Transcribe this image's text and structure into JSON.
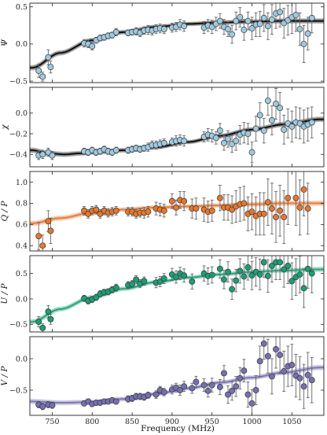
{
  "chart_data": [
    {
      "type": "scatter",
      "ylabel": "Ψ",
      "ylim": [
        -0.52,
        0.55
      ],
      "yticks": [
        -0.5,
        0.0,
        0.5
      ],
      "yticklabels": [
        "−0.5",
        "0.0",
        "0.5"
      ],
      "marker_color": "#9ecae1",
      "band_color": "#000000",
      "model": {
        "x": [
          725,
          760,
          800,
          840,
          880,
          920,
          960,
          1000,
          1040,
          1085
        ],
        "y": [
          -0.32,
          -0.12,
          0.05,
          0.16,
          0.23,
          0.27,
          0.29,
          0.3,
          0.31,
          0.31
        ]
      },
      "points": {
        "x": [
          733,
          738,
          745,
          748,
          790,
          795,
          800,
          805,
          810,
          815,
          820,
          825,
          830,
          845,
          850,
          855,
          860,
          865,
          870,
          875,
          880,
          885,
          890,
          900,
          905,
          910,
          915,
          940,
          945,
          950,
          955,
          960,
          965,
          970,
          975,
          980,
          985,
          990,
          995,
          1000,
          1005,
          1010,
          1015,
          1020,
          1025,
          1030,
          1035,
          1040,
          1045,
          1050,
          1055,
          1060,
          1065,
          1070,
          1075
        ],
        "y": [
          -0.36,
          -0.44,
          -0.18,
          -0.31,
          0.01,
          0.0,
          -0.03,
          0.05,
          0.08,
          0.09,
          0.11,
          0.12,
          0.16,
          0.15,
          0.16,
          0.17,
          0.15,
          0.18,
          0.19,
          0.18,
          0.2,
          0.21,
          0.2,
          0.22,
          0.23,
          0.26,
          0.24,
          0.22,
          0.25,
          0.23,
          0.27,
          0.31,
          0.23,
          0.2,
          0.13,
          0.31,
          0.36,
          0.19,
          0.31,
          0.21,
          0.26,
          0.27,
          0.35,
          0.24,
          0.33,
          0.41,
          0.43,
          0.28,
          0.32,
          0.36,
          0.39,
          0.2,
          0.0,
          0.14,
          0.35
        ],
        "err": [
          0.09,
          0.06,
          0.1,
          0.08,
          0.05,
          0.05,
          0.05,
          0.04,
          0.04,
          0.04,
          0.04,
          0.04,
          0.05,
          0.04,
          0.04,
          0.05,
          0.05,
          0.05,
          0.06,
          0.06,
          0.06,
          0.06,
          0.06,
          0.06,
          0.06,
          0.07,
          0.07,
          0.08,
          0.08,
          0.09,
          0.09,
          0.1,
          0.1,
          0.1,
          0.12,
          0.12,
          0.13,
          0.14,
          0.12,
          0.15,
          0.16,
          0.17,
          0.18,
          0.18,
          0.2,
          0.2,
          0.2,
          0.2,
          0.2,
          0.22,
          0.22,
          0.22,
          0.25,
          0.22,
          0.2
        ]
      }
    },
    {
      "type": "scatter",
      "ylabel": "χ",
      "ylim": [
        -0.52,
        0.25
      ],
      "yticks": [
        -0.4,
        -0.2,
        0.0
      ],
      "yticklabels": [
        "−0.4",
        "−0.2",
        "0.0"
      ],
      "marker_color": "#9ecae1",
      "band_color": "#000000",
      "model": {
        "x": [
          725,
          745,
          765,
          785,
          800,
          840,
          880,
          920,
          960,
          1000,
          1040,
          1085
        ],
        "y": [
          -0.36,
          -0.39,
          -0.4,
          -0.39,
          -0.38,
          -0.36,
          -0.33,
          -0.28,
          -0.22,
          -0.16,
          -0.11,
          -0.06
        ]
      },
      "points": {
        "x": [
          733,
          738,
          745,
          750,
          790,
          795,
          800,
          805,
          810,
          815,
          820,
          825,
          830,
          845,
          850,
          855,
          860,
          865,
          870,
          875,
          880,
          885,
          890,
          900,
          905,
          910,
          915,
          940,
          945,
          950,
          955,
          960,
          965,
          970,
          975,
          980,
          985,
          990,
          995,
          1000,
          1005,
          1010,
          1015,
          1020,
          1025,
          1030,
          1035,
          1040,
          1045,
          1050,
          1055,
          1060,
          1065,
          1070,
          1075
        ],
        "y": [
          -0.41,
          -0.4,
          -0.38,
          -0.41,
          -0.37,
          -0.38,
          -0.36,
          -0.38,
          -0.37,
          -0.35,
          -0.37,
          -0.38,
          -0.36,
          -0.36,
          -0.35,
          -0.34,
          -0.35,
          -0.34,
          -0.33,
          -0.31,
          -0.31,
          -0.3,
          -0.29,
          -0.28,
          -0.27,
          -0.26,
          -0.27,
          -0.23,
          -0.21,
          -0.22,
          -0.24,
          -0.17,
          -0.29,
          -0.25,
          -0.3,
          -0.27,
          -0.21,
          -0.19,
          -0.2,
          -0.38,
          -0.15,
          -0.02,
          -0.17,
          0.12,
          -0.07,
          0.09,
          0.05,
          -0.16,
          -0.1,
          -0.13,
          -0.09,
          -0.1,
          -0.13,
          -0.11,
          -0.09
        ],
        "err": [
          0.04,
          0.04,
          0.04,
          0.04,
          0.03,
          0.03,
          0.03,
          0.03,
          0.03,
          0.03,
          0.03,
          0.03,
          0.03,
          0.03,
          0.03,
          0.03,
          0.03,
          0.03,
          0.04,
          0.04,
          0.04,
          0.04,
          0.04,
          0.04,
          0.05,
          0.05,
          0.05,
          0.05,
          0.06,
          0.06,
          0.06,
          0.07,
          0.07,
          0.08,
          0.08,
          0.09,
          0.09,
          0.1,
          0.1,
          0.1,
          0.12,
          0.12,
          0.12,
          0.14,
          0.14,
          0.15,
          0.15,
          0.14,
          0.14,
          0.15,
          0.15,
          0.15,
          0.16,
          0.16,
          0.15
        ]
      }
    },
    {
      "type": "scatter",
      "ylabel": "Q / P",
      "ylim": [
        0.35,
        1.1
      ],
      "yticks": [
        0.4,
        0.6,
        0.8,
        1.0
      ],
      "yticklabels": [
        "0.4",
        "0.6",
        "0.8",
        "1.0"
      ],
      "marker_color": "#e6772e",
      "band_color": "#e6772e",
      "model": {
        "x": [
          725,
          760,
          800,
          840,
          880,
          920,
          960,
          1000,
          1040,
          1085
        ],
        "y": [
          0.61,
          0.66,
          0.71,
          0.74,
          0.76,
          0.77,
          0.78,
          0.79,
          0.8,
          0.8
        ]
      },
      "points": {
        "x": [
          733,
          738,
          745,
          748,
          790,
          795,
          800,
          805,
          810,
          815,
          820,
          825,
          830,
          845,
          850,
          855,
          860,
          865,
          870,
          880,
          885,
          890,
          900,
          905,
          910,
          915,
          925,
          930,
          940,
          945,
          950,
          960,
          965,
          970,
          975,
          980,
          985,
          990,
          995,
          1000,
          1005,
          1010,
          1015,
          1020,
          1025,
          1030,
          1035,
          1040,
          1045,
          1055,
          1060,
          1065,
          1070
        ],
        "y": [
          0.49,
          0.4,
          0.63,
          0.54,
          0.73,
          0.7,
          0.73,
          0.74,
          0.7,
          0.73,
          0.71,
          0.72,
          0.73,
          0.72,
          0.72,
          0.7,
          0.71,
          0.71,
          0.72,
          0.75,
          0.74,
          0.73,
          0.82,
          0.76,
          0.83,
          0.82,
          0.75,
          0.75,
          0.74,
          0.72,
          0.73,
          0.85,
          0.76,
          0.76,
          0.74,
          0.77,
          0.79,
          0.8,
          0.7,
          0.72,
          0.68,
          0.7,
          0.7,
          0.81,
          0.75,
          0.67,
          0.73,
          0.67,
          0.85,
          0.85,
          0.76,
          0.93,
          0.75
        ],
        "err": [
          0.13,
          0.1,
          0.1,
          0.12,
          0.04,
          0.04,
          0.04,
          0.04,
          0.04,
          0.04,
          0.04,
          0.04,
          0.04,
          0.04,
          0.04,
          0.04,
          0.04,
          0.05,
          0.05,
          0.06,
          0.06,
          0.06,
          0.07,
          0.07,
          0.08,
          0.09,
          0.09,
          0.1,
          0.11,
          0.1,
          0.1,
          0.12,
          0.12,
          0.12,
          0.13,
          0.15,
          0.16,
          0.16,
          0.16,
          0.17,
          0.18,
          0.2,
          0.2,
          0.22,
          0.24,
          0.24,
          0.24,
          0.25,
          0.25,
          0.26,
          0.26,
          0.25,
          0.24
        ]
      }
    },
    {
      "type": "scatter",
      "ylabel": "U / P",
      "ylim": [
        -0.65,
        0.85
      ],
      "yticks": [
        -0.5,
        0.0,
        0.5
      ],
      "yticklabels": [
        "−0.5",
        "0.0",
        "0.5"
      ],
      "marker_color": "#1b9e77",
      "band_color": "#1b9e77",
      "model": {
        "x": [
          725,
          760,
          800,
          840,
          880,
          920,
          960,
          1000,
          1040,
          1085
        ],
        "y": [
          -0.45,
          -0.2,
          0.03,
          0.2,
          0.33,
          0.42,
          0.48,
          0.53,
          0.56,
          0.58
        ]
      },
      "points": {
        "x": [
          733,
          738,
          745,
          748,
          790,
          795,
          800,
          805,
          810,
          815,
          820,
          825,
          830,
          845,
          850,
          855,
          860,
          865,
          880,
          885,
          890,
          900,
          905,
          910,
          915,
          925,
          940,
          945,
          950,
          960,
          965,
          970,
          975,
          980,
          985,
          990,
          995,
          1000,
          1005,
          1010,
          1015,
          1020,
          1025,
          1030,
          1035,
          1040,
          1045,
          1050,
          1055,
          1060,
          1065,
          1070,
          1075
        ],
        "y": [
          -0.45,
          -0.57,
          -0.25,
          -0.4,
          0.01,
          -0.04,
          -0.01,
          0.03,
          0.1,
          0.13,
          0.14,
          0.18,
          0.22,
          0.27,
          0.29,
          0.38,
          0.3,
          0.35,
          0.32,
          0.34,
          0.4,
          0.48,
          0.43,
          0.5,
          0.46,
          0.34,
          0.5,
          0.45,
          0.47,
          0.59,
          0.38,
          0.53,
          0.19,
          0.36,
          0.55,
          0.44,
          0.62,
          0.46,
          0.53,
          0.48,
          0.72,
          0.45,
          0.65,
          0.72,
          0.72,
          0.58,
          0.65,
          0.35,
          0.43,
          0.48,
          0.21,
          0.59,
          0.5
        ],
        "err": [
          0.1,
          0.08,
          0.12,
          0.1,
          0.06,
          0.06,
          0.06,
          0.06,
          0.06,
          0.06,
          0.06,
          0.06,
          0.07,
          0.07,
          0.07,
          0.08,
          0.08,
          0.08,
          0.1,
          0.1,
          0.1,
          0.12,
          0.12,
          0.12,
          0.13,
          0.15,
          0.15,
          0.16,
          0.16,
          0.18,
          0.18,
          0.2,
          0.2,
          0.22,
          0.24,
          0.25,
          0.25,
          0.28,
          0.28,
          0.3,
          0.3,
          0.32,
          0.32,
          0.34,
          0.34,
          0.35,
          0.35,
          0.36,
          0.36,
          0.36,
          0.38,
          0.38,
          0.38
        ]
      }
    },
    {
      "type": "scatter",
      "ylabel": "V / P",
      "xlabel": "Frequency (MHz)",
      "xlim": [
        722,
        1090
      ],
      "xticks": [
        750,
        800,
        850,
        900,
        950,
        1000,
        1050
      ],
      "xticklabels": [
        "750",
        "800",
        "850",
        "900",
        "950",
        "1000",
        "1050"
      ],
      "ylim": [
        -0.9,
        0.35
      ],
      "yticks": [
        -0.5,
        0.0
      ],
      "yticklabels": [
        "−0.5",
        "0.0"
      ],
      "marker_color": "#7570b3",
      "band_color": "#7570b3",
      "model": {
        "x": [
          725,
          760,
          800,
          840,
          880,
          920,
          960,
          1000,
          1040,
          1085
        ],
        "y": [
          -0.68,
          -0.7,
          -0.69,
          -0.64,
          -0.56,
          -0.47,
          -0.38,
          -0.3,
          -0.22,
          -0.14
        ]
      },
      "points": {
        "x": [
          733,
          738,
          745,
          750,
          790,
          795,
          800,
          805,
          810,
          815,
          820,
          825,
          830,
          845,
          850,
          855,
          860,
          865,
          870,
          880,
          885,
          890,
          900,
          905,
          910,
          915,
          925,
          930,
          940,
          945,
          950,
          960,
          965,
          970,
          975,
          980,
          985,
          990,
          995,
          1000,
          1005,
          1010,
          1015,
          1020,
          1025,
          1030,
          1035,
          1040,
          1045,
          1050,
          1055,
          1060,
          1065,
          1070,
          1075
        ],
        "y": [
          -0.73,
          -0.76,
          -0.73,
          -0.74,
          -0.71,
          -0.68,
          -0.72,
          -0.7,
          -0.7,
          -0.68,
          -0.68,
          -0.66,
          -0.68,
          -0.64,
          -0.63,
          -0.6,
          -0.6,
          -0.61,
          -0.58,
          -0.57,
          -0.5,
          -0.53,
          -0.49,
          -0.46,
          -0.5,
          -0.44,
          -0.47,
          -0.37,
          -0.42,
          -0.51,
          -0.42,
          -0.45,
          -0.23,
          -0.57,
          -0.51,
          -0.44,
          -0.31,
          -0.19,
          -0.57,
          -0.71,
          -0.5,
          -0.04,
          0.24,
          0.04,
          -0.28,
          0.15,
          0.06,
          -0.2,
          -0.12,
          -0.1,
          -0.27,
          -0.31,
          -0.44,
          -0.26,
          -0.34
        ],
        "err": [
          0.05,
          0.05,
          0.05,
          0.05,
          0.04,
          0.04,
          0.04,
          0.04,
          0.04,
          0.04,
          0.04,
          0.04,
          0.04,
          0.05,
          0.05,
          0.05,
          0.05,
          0.05,
          0.05,
          0.06,
          0.06,
          0.06,
          0.07,
          0.07,
          0.08,
          0.08,
          0.08,
          0.09,
          0.1,
          0.1,
          0.11,
          0.12,
          0.12,
          0.14,
          0.15,
          0.16,
          0.17,
          0.18,
          0.2,
          0.22,
          0.23,
          0.24,
          0.25,
          0.27,
          0.28,
          0.3,
          0.3,
          0.32,
          0.32,
          0.33,
          0.34,
          0.34,
          0.35,
          0.36,
          0.36
        ]
      }
    }
  ]
}
